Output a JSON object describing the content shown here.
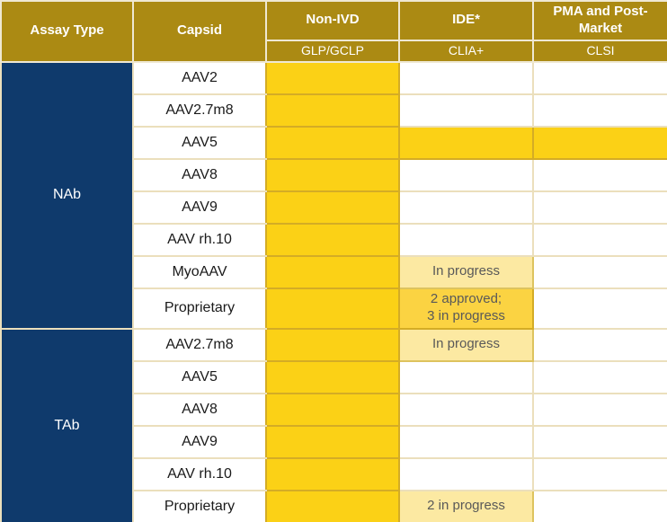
{
  "header": {
    "columns": [
      {
        "label": "Assay Type",
        "sub": ""
      },
      {
        "label": "Capsid",
        "sub": ""
      },
      {
        "label": "Non-IVD",
        "sub": "GLP/GCLP"
      },
      {
        "label": "IDE*",
        "sub": "CLIA+"
      },
      {
        "label": "PMA and Post-Market",
        "sub": "CLSI"
      }
    ]
  },
  "groups": [
    {
      "assay_type": "NAb",
      "rows": [
        {
          "capsid": "AAV2",
          "non_ivd": {
            "status": "available",
            "label": ""
          },
          "ide": {
            "status": "none",
            "label": ""
          },
          "pma": {
            "status": "none",
            "label": ""
          }
        },
        {
          "capsid": "AAV2.7m8",
          "non_ivd": {
            "status": "available",
            "label": ""
          },
          "ide": {
            "status": "none",
            "label": ""
          },
          "pma": {
            "status": "none",
            "label": ""
          }
        },
        {
          "capsid": "AAV5",
          "non_ivd": {
            "status": "available",
            "label": ""
          },
          "ide": {
            "status": "available",
            "label": ""
          },
          "pma": {
            "status": "available",
            "label": ""
          }
        },
        {
          "capsid": "AAV8",
          "non_ivd": {
            "status": "available",
            "label": ""
          },
          "ide": {
            "status": "none",
            "label": ""
          },
          "pma": {
            "status": "none",
            "label": ""
          }
        },
        {
          "capsid": "AAV9",
          "non_ivd": {
            "status": "available",
            "label": ""
          },
          "ide": {
            "status": "none",
            "label": ""
          },
          "pma": {
            "status": "none",
            "label": ""
          }
        },
        {
          "capsid": "AAV rh.10",
          "non_ivd": {
            "status": "available",
            "label": ""
          },
          "ide": {
            "status": "none",
            "label": ""
          },
          "pma": {
            "status": "none",
            "label": ""
          }
        },
        {
          "capsid": "MyoAAV",
          "non_ivd": {
            "status": "available",
            "label": ""
          },
          "ide": {
            "status": "in-progress",
            "label": "In progress"
          },
          "pma": {
            "status": "none",
            "label": ""
          }
        },
        {
          "capsid": "Proprietary",
          "non_ivd": {
            "status": "available",
            "label": ""
          },
          "ide": {
            "status": "approved-mixed",
            "label": "2 approved;\n3 in progress"
          },
          "pma": {
            "status": "none",
            "label": ""
          }
        }
      ]
    },
    {
      "assay_type": "TAb",
      "rows": [
        {
          "capsid": "AAV2.7m8",
          "non_ivd": {
            "status": "available",
            "label": ""
          },
          "ide": {
            "status": "in-progress",
            "label": "In progress"
          },
          "pma": {
            "status": "none",
            "label": ""
          }
        },
        {
          "capsid": "AAV5",
          "non_ivd": {
            "status": "available",
            "label": ""
          },
          "ide": {
            "status": "none",
            "label": ""
          },
          "pma": {
            "status": "none",
            "label": ""
          }
        },
        {
          "capsid": "AAV8",
          "non_ivd": {
            "status": "available",
            "label": ""
          },
          "ide": {
            "status": "none",
            "label": ""
          },
          "pma": {
            "status": "none",
            "label": ""
          }
        },
        {
          "capsid": "AAV9",
          "non_ivd": {
            "status": "available",
            "label": ""
          },
          "ide": {
            "status": "none",
            "label": ""
          },
          "pma": {
            "status": "none",
            "label": ""
          }
        },
        {
          "capsid": "AAV rh.10",
          "non_ivd": {
            "status": "available",
            "label": ""
          },
          "ide": {
            "status": "none",
            "label": ""
          },
          "pma": {
            "status": "none",
            "label": ""
          }
        },
        {
          "capsid": "Proprietary",
          "non_ivd": {
            "status": "available",
            "label": ""
          },
          "ide": {
            "status": "in-progress",
            "label": "2 in progress"
          },
          "pma": {
            "status": "none",
            "label": ""
          }
        }
      ]
    }
  ],
  "colors": {
    "header_gold": "#AB8A13",
    "navy": "#0F3A6C",
    "available_gold": "#FBD116",
    "approved_mixed_gold": "#FBD342",
    "in_progress_yellow": "#FCE9A2",
    "status_text_gray": "#595959"
  },
  "chart_data": {
    "type": "table",
    "title": "",
    "column_headers": [
      "Assay Type",
      "Capsid",
      "Non-IVD (GLP/GCLP)",
      "IDE* (CLIA+)",
      "PMA and Post-Market (CLSI)"
    ],
    "rows": [
      [
        "NAb",
        "AAV2",
        "available",
        "",
        ""
      ],
      [
        "NAb",
        "AAV2.7m8",
        "available",
        "",
        ""
      ],
      [
        "NAb",
        "AAV5",
        "available",
        "available",
        "available"
      ],
      [
        "NAb",
        "AAV8",
        "available",
        "",
        ""
      ],
      [
        "NAb",
        "AAV9",
        "available",
        "",
        ""
      ],
      [
        "NAb",
        "AAV rh.10",
        "available",
        "",
        ""
      ],
      [
        "NAb",
        "MyoAAV",
        "available",
        "In progress",
        ""
      ],
      [
        "NAb",
        "Proprietary",
        "available",
        "2 approved; 3 in progress",
        ""
      ],
      [
        "TAb",
        "AAV2.7m8",
        "available",
        "In progress",
        ""
      ],
      [
        "TAb",
        "AAV5",
        "available",
        "",
        ""
      ],
      [
        "TAb",
        "AAV8",
        "available",
        "",
        ""
      ],
      [
        "TAb",
        "AAV9",
        "available",
        "",
        ""
      ],
      [
        "TAb",
        "AAV rh.10",
        "available",
        "",
        ""
      ],
      [
        "TAb",
        "Proprietary",
        "available",
        "2 in progress",
        ""
      ]
    ]
  }
}
